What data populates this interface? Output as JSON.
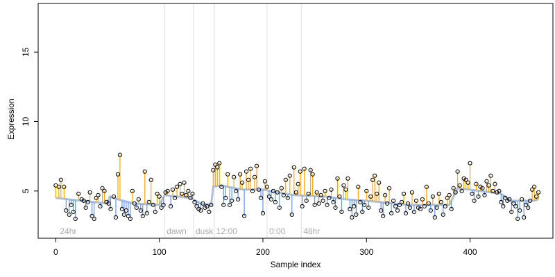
{
  "chart_data": {
    "type": "scatter",
    "title": "",
    "xlabel": "Sample index",
    "ylabel": "Expression",
    "xlim": [
      -17,
      480
    ],
    "ylim": [
      1.6,
      18.5
    ],
    "x_ticks": [
      0,
      100,
      200,
      300,
      400
    ],
    "y_ticks": [
      5,
      10,
      15
    ],
    "grid": false,
    "phase_markers": [
      {
        "label": "24hr",
        "x": 2,
        "line": false
      },
      {
        "label": "dawn",
        "x": 105,
        "line": true
      },
      {
        "label": "dusk",
        "x": 133,
        "line": true
      },
      {
        "label": "12:00",
        "x": 153,
        "line": true
      },
      {
        "label": "0:00",
        "x": 204,
        "line": true
      },
      {
        "label": "48hr",
        "x": 237,
        "line": true
      }
    ],
    "colors": {
      "above_baseline": "#ffa500",
      "below_baseline": "#6495ed",
      "baseline": "#8fa7c9",
      "point_edge": "#000000",
      "phase_line": "#dddddd",
      "phase_label": "#aaaaaa"
    },
    "series": [
      {
        "points": [
          [
            0,
            5.4
          ],
          [
            3,
            5.3
          ],
          [
            5,
            5.8
          ],
          [
            8,
            5.3
          ],
          [
            10,
            3.6
          ],
          [
            13,
            3.3
          ],
          [
            15,
            4.0
          ],
          [
            17,
            3.5
          ],
          [
            19,
            3.0
          ],
          [
            22,
            4.8
          ],
          [
            25,
            4.4
          ],
          [
            27,
            4.3
          ],
          [
            29,
            3.8
          ],
          [
            31,
            4.2
          ],
          [
            33,
            4.9
          ],
          [
            35,
            3.2
          ],
          [
            37,
            3.0
          ],
          [
            39,
            4.5
          ],
          [
            41,
            4.7
          ],
          [
            43,
            3.9
          ],
          [
            45,
            5.2
          ],
          [
            47,
            5.0
          ],
          [
            49,
            4.2
          ],
          [
            51,
            4.1
          ],
          [
            53,
            3.7
          ],
          [
            56,
            4.6
          ],
          [
            58,
            3.1
          ],
          [
            60,
            6.2
          ],
          [
            62,
            7.6
          ],
          [
            64,
            3.7
          ],
          [
            66,
            3.3
          ],
          [
            68,
            3.6
          ],
          [
            70,
            3.2
          ],
          [
            72,
            3.0
          ],
          [
            74,
            5.0
          ],
          [
            76,
            4.1
          ],
          [
            78,
            3.8
          ],
          [
            80,
            4.4
          ],
          [
            82,
            3.6
          ],
          [
            84,
            3.2
          ],
          [
            86,
            6.4
          ],
          [
            88,
            3.4
          ],
          [
            90,
            4.2
          ],
          [
            92,
            5.8
          ],
          [
            94,
            4.0
          ],
          [
            96,
            3.5
          ],
          [
            98,
            4.8
          ],
          [
            100,
            4.6
          ],
          [
            102,
            3.8
          ],
          [
            104,
            4.0
          ],
          [
            106,
            4.9
          ],
          [
            108,
            5.0
          ],
          [
            111,
            3.9
          ],
          [
            113,
            5.1
          ],
          [
            115,
            4.5
          ],
          [
            117,
            5.3
          ],
          [
            120,
            5.5
          ],
          [
            122,
            4.8
          ],
          [
            124,
            5.6
          ],
          [
            126,
            4.7
          ],
          [
            128,
            5.0
          ],
          [
            130,
            4.5
          ],
          [
            132,
            4.8
          ],
          [
            134,
            4.2
          ],
          [
            136,
            3.9
          ],
          [
            138,
            3.7
          ],
          [
            140,
            3.6
          ],
          [
            142,
            4.1
          ],
          [
            144,
            3.8
          ],
          [
            146,
            3.9
          ],
          [
            148,
            3.5
          ],
          [
            150,
            4.0
          ],
          [
            152,
            6.5
          ],
          [
            154,
            6.9
          ],
          [
            156,
            6.7
          ],
          [
            158,
            7.0
          ],
          [
            160,
            5.3
          ],
          [
            162,
            4.0
          ],
          [
            164,
            4.5
          ],
          [
            166,
            6.2
          ],
          [
            168,
            4.0
          ],
          [
            170,
            4.3
          ],
          [
            172,
            6.0
          ],
          [
            174,
            5.0
          ],
          [
            176,
            4.4
          ],
          [
            178,
            6.2
          ],
          [
            180,
            5.6
          ],
          [
            182,
            3.2
          ],
          [
            184,
            6.4
          ],
          [
            186,
            5.8
          ],
          [
            188,
            6.6
          ],
          [
            190,
            5.0
          ],
          [
            192,
            6.0
          ],
          [
            194,
            6.8
          ],
          [
            196,
            5.1
          ],
          [
            198,
            4.5
          ],
          [
            200,
            3.4
          ],
          [
            202,
            5.7
          ],
          [
            204,
            5.3
          ],
          [
            206,
            4.6
          ],
          [
            208,
            4.4
          ],
          [
            210,
            5.0
          ],
          [
            212,
            4.2
          ],
          [
            214,
            4.9
          ],
          [
            216,
            3.8
          ],
          [
            218,
            5.2
          ],
          [
            220,
            4.7
          ],
          [
            222,
            5.8
          ],
          [
            224,
            4.5
          ],
          [
            226,
            6.1
          ],
          [
            228,
            3.3
          ],
          [
            230,
            6.7
          ],
          [
            232,
            4.9
          ],
          [
            234,
            5.5
          ],
          [
            236,
            6.4
          ],
          [
            238,
            3.9
          ],
          [
            240,
            6.6
          ],
          [
            242,
            4.3
          ],
          [
            244,
            4.8
          ],
          [
            246,
            6.5
          ],
          [
            248,
            6.2
          ],
          [
            250,
            4.0
          ],
          [
            252,
            4.9
          ],
          [
            254,
            4.1
          ],
          [
            256,
            4.7
          ],
          [
            258,
            4.3
          ],
          [
            260,
            5.0
          ],
          [
            262,
            4.0
          ],
          [
            264,
            4.5
          ],
          [
            266,
            5.1
          ],
          [
            268,
            4.2
          ],
          [
            270,
            3.8
          ],
          [
            272,
            5.9
          ],
          [
            274,
            4.6
          ],
          [
            276,
            3.5
          ],
          [
            278,
            5.4
          ],
          [
            280,
            5.1
          ],
          [
            282,
            5.9
          ],
          [
            284,
            3.7
          ],
          [
            286,
            3.1
          ],
          [
            288,
            3.9
          ],
          [
            290,
            3.3
          ],
          [
            292,
            5.3
          ],
          [
            294,
            4.2
          ],
          [
            296,
            3.5
          ],
          [
            298,
            4.0
          ],
          [
            300,
            5.0
          ],
          [
            302,
            3.8
          ],
          [
            304,
            4.6
          ],
          [
            306,
            5.8
          ],
          [
            308,
            6.1
          ],
          [
            310,
            4.8
          ],
          [
            312,
            5.6
          ],
          [
            314,
            3.6
          ],
          [
            316,
            3.2
          ],
          [
            318,
            4.7
          ],
          [
            320,
            4.1
          ],
          [
            322,
            5.2
          ],
          [
            324,
            3.4
          ],
          [
            326,
            4.3
          ],
          [
            328,
            3.9
          ],
          [
            330,
            3.6
          ],
          [
            332,
            4.0
          ],
          [
            334,
            4.2
          ],
          [
            336,
            4.8
          ],
          [
            338,
            3.4
          ],
          [
            340,
            4.1
          ],
          [
            342,
            3.8
          ],
          [
            344,
            4.9
          ],
          [
            346,
            3.5
          ],
          [
            348,
            4.3
          ],
          [
            350,
            3.8
          ],
          [
            352,
            3.7
          ],
          [
            354,
            4.4
          ],
          [
            356,
            3.9
          ],
          [
            358,
            5.3
          ],
          [
            360,
            4.1
          ],
          [
            362,
            3.6
          ],
          [
            364,
            4.6
          ],
          [
            366,
            3.1
          ],
          [
            368,
            3.8
          ],
          [
            370,
            4.8
          ],
          [
            372,
            4.2
          ],
          [
            374,
            3.3
          ],
          [
            376,
            3.9
          ],
          [
            378,
            4.5
          ],
          [
            380,
            4.7
          ],
          [
            382,
            3.7
          ],
          [
            384,
            5.2
          ],
          [
            386,
            4.9
          ],
          [
            388,
            6.4
          ],
          [
            390,
            5.4
          ],
          [
            392,
            5.0
          ],
          [
            394,
            5.9
          ],
          [
            396,
            5.8
          ],
          [
            398,
            5.6
          ],
          [
            400,
            7.0
          ],
          [
            402,
            4.8
          ],
          [
            404,
            4.3
          ],
          [
            406,
            5.5
          ],
          [
            408,
            4.6
          ],
          [
            410,
            5.3
          ],
          [
            412,
            5.2
          ],
          [
            414,
            4.7
          ],
          [
            416,
            5.7
          ],
          [
            418,
            5.4
          ],
          [
            420,
            6.1
          ],
          [
            422,
            5.0
          ],
          [
            424,
            5.5
          ],
          [
            426,
            4.9
          ],
          [
            428,
            5.0
          ],
          [
            430,
            4.2
          ],
          [
            432,
            3.9
          ],
          [
            434,
            4.5
          ],
          [
            436,
            4.3
          ],
          [
            438,
            4.4
          ],
          [
            440,
            3.5
          ],
          [
            442,
            4.1
          ],
          [
            444,
            3.9
          ],
          [
            446,
            3.0
          ],
          [
            448,
            3.6
          ],
          [
            450,
            4.4
          ],
          [
            452,
            3.1
          ],
          [
            454,
            4.0
          ],
          [
            456,
            3.8
          ],
          [
            458,
            4.3
          ],
          [
            460,
            5.1
          ],
          [
            462,
            5.3
          ],
          [
            464,
            4.6
          ],
          [
            466,
            4.9
          ]
        ],
        "baseline": [
          [
            0,
            4.5
          ],
          [
            50,
            4.1
          ],
          [
            52,
            4.6
          ],
          [
            60,
            4.4
          ],
          [
            75,
            4.1
          ],
          [
            100,
            4.0
          ],
          [
            105,
            4.7
          ],
          [
            130,
            4.5
          ],
          [
            140,
            4.1
          ],
          [
            150,
            4.0
          ],
          [
            152,
            5.3
          ],
          [
            160,
            5.4
          ],
          [
            180,
            5.1
          ],
          [
            200,
            5.1
          ],
          [
            230,
            4.7
          ],
          [
            260,
            4.6
          ],
          [
            280,
            4.4
          ],
          [
            300,
            4.3
          ],
          [
            340,
            4.0
          ],
          [
            380,
            4.0
          ],
          [
            388,
            5.2
          ],
          [
            410,
            5.0
          ],
          [
            430,
            4.8
          ],
          [
            440,
            4.3
          ],
          [
            462,
            4.3
          ],
          [
            466,
            4.4
          ]
        ]
      }
    ]
  }
}
